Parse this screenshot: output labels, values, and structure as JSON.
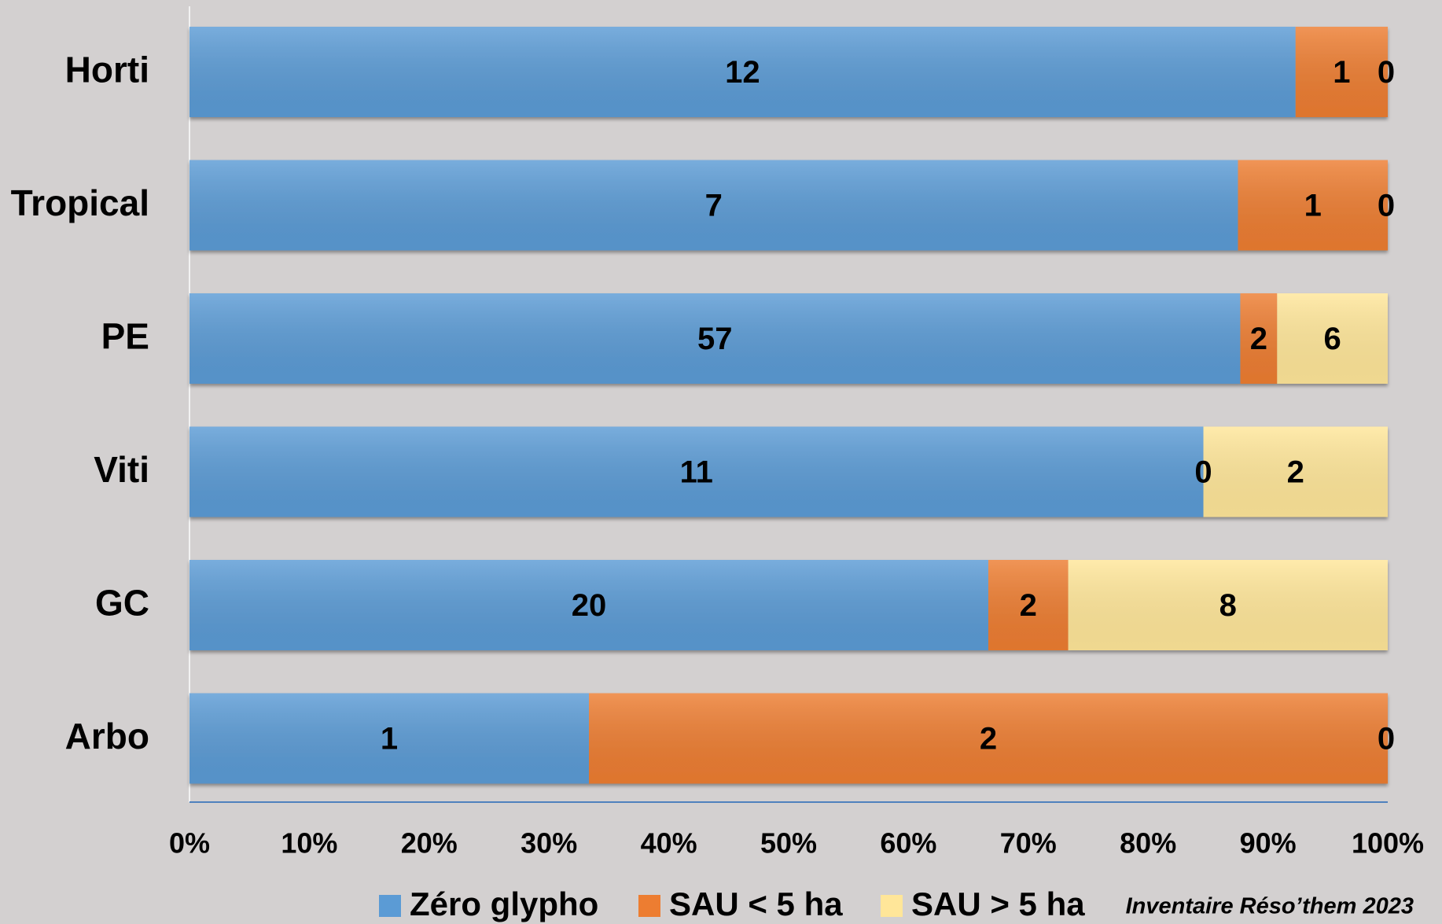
{
  "chart_data": {
    "type": "bar",
    "orientation": "horizontal",
    "stacked": "percent",
    "categories": [
      "Horti",
      "Tropical",
      "PE",
      "Viti",
      "GC",
      "Arbo"
    ],
    "series": [
      {
        "name": "Zéro glypho",
        "color": "#5b9bd5",
        "values": [
          12,
          7,
          57,
          11,
          20,
          1
        ]
      },
      {
        "name": "SAU < 5 ha",
        "color": "#ed7d31",
        "values": [
          1,
          1,
          2,
          0,
          2,
          2
        ]
      },
      {
        "name": "SAU > 5 ha",
        "color": "#ffe699",
        "values": [
          0,
          0,
          6,
          2,
          8,
          0
        ]
      }
    ],
    "xlim": [
      0,
      100
    ],
    "xticks": [
      {
        "value": 0,
        "label": "0%"
      },
      {
        "value": 10,
        "label": "10%"
      },
      {
        "value": 20,
        "label": "20%"
      },
      {
        "value": 30,
        "label": "30%"
      },
      {
        "value": 40,
        "label": "40%"
      },
      {
        "value": 50,
        "label": "50%"
      },
      {
        "value": 60,
        "label": "60%"
      },
      {
        "value": 70,
        "label": "70%"
      },
      {
        "value": 80,
        "label": "80%"
      },
      {
        "value": 90,
        "label": "90%"
      },
      {
        "value": 100,
        "label": "100%"
      }
    ],
    "annotation": "Inventaire Réso’them 2023",
    "legend": "bottom"
  }
}
